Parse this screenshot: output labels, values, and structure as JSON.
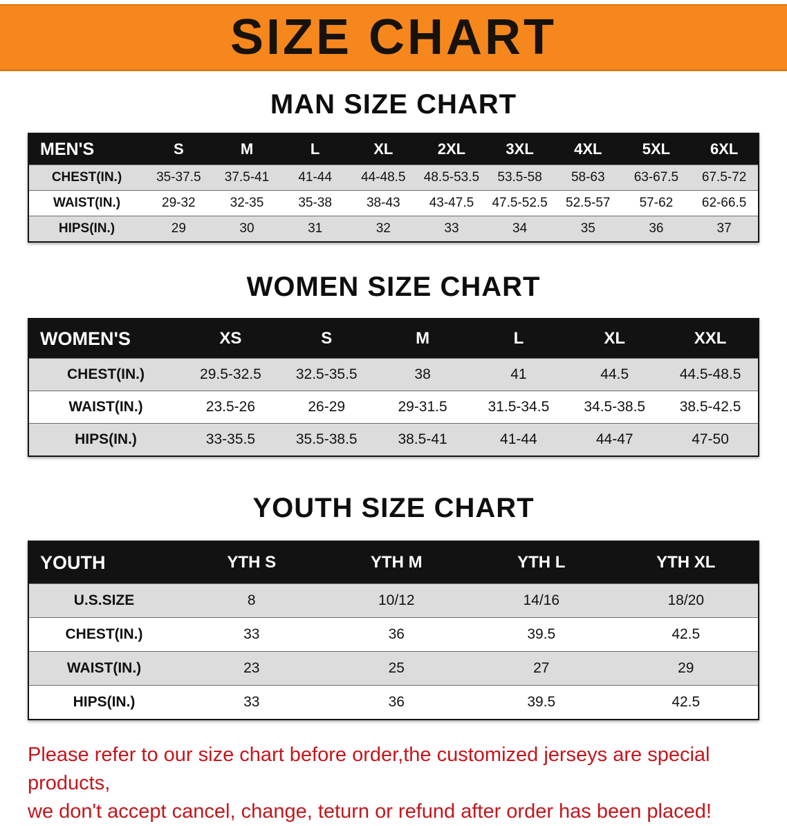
{
  "banner": {
    "title": "SIZE CHART",
    "bg_color": "#f6871d"
  },
  "men": {
    "heading": "MAN SIZE CHART",
    "corner": "MEN'S",
    "columns": [
      "S",
      "M",
      "L",
      "XL",
      "2XL",
      "3XL",
      "4XL",
      "5XL",
      "6XL"
    ],
    "rows": [
      {
        "label": "CHEST(IN.)",
        "values": [
          "35-37.5",
          "37.5-41",
          "41-44",
          "44-48.5",
          "48.5-53.5",
          "53.5-58",
          "58-63",
          "63-67.5",
          "67.5-72"
        ]
      },
      {
        "label": "WAIST(IN.)",
        "values": [
          "29-32",
          "32-35",
          "35-38",
          "38-43",
          "43-47.5",
          "47.5-52.5",
          "52.5-57",
          "57-62",
          "62-66.5"
        ]
      },
      {
        "label": "HIPS(IN.)",
        "values": [
          "29",
          "30",
          "31",
          "32",
          "33",
          "34",
          "35",
          "36",
          "37"
        ]
      }
    ]
  },
  "women": {
    "heading": "WOMEN SIZE CHART",
    "corner": "WOMEN'S",
    "columns": [
      "XS",
      "S",
      "M",
      "L",
      "XL",
      "XXL"
    ],
    "rows": [
      {
        "label": "CHEST(IN.)",
        "values": [
          "29.5-32.5",
          "32.5-35.5",
          "38",
          "41",
          "44.5",
          "44.5-48.5"
        ]
      },
      {
        "label": "WAIST(IN.)",
        "values": [
          "23.5-26",
          "26-29",
          "29-31.5",
          "31.5-34.5",
          "34.5-38.5",
          "38.5-42.5"
        ]
      },
      {
        "label": "HIPS(IN.)",
        "values": [
          "33-35.5",
          "35.5-38.5",
          "38.5-41",
          "41-44",
          "44-47",
          "47-50"
        ]
      }
    ]
  },
  "youth": {
    "heading": "YOUTH SIZE CHART",
    "corner": "YOUTH",
    "columns": [
      "YTH S",
      "YTH M",
      "YTH L",
      "YTH XL"
    ],
    "rows": [
      {
        "label": "U.S.SIZE",
        "values": [
          "8",
          "10/12",
          "14/16",
          "18/20"
        ]
      },
      {
        "label": "CHEST(IN.)",
        "values": [
          "33",
          "36",
          "39.5",
          "42.5"
        ]
      },
      {
        "label": "WAIST(IN.)",
        "values": [
          "23",
          "25",
          "27",
          "29"
        ]
      },
      {
        "label": "HIPS(IN.)",
        "values": [
          "33",
          "36",
          "39.5",
          "42.5"
        ]
      }
    ]
  },
  "disclaimer": {
    "line1": "Please refer to our size chart before order,the customized jerseys are special products,",
    "line2": "we don't accept cancel, change, teturn or refund after order has been placed!"
  }
}
